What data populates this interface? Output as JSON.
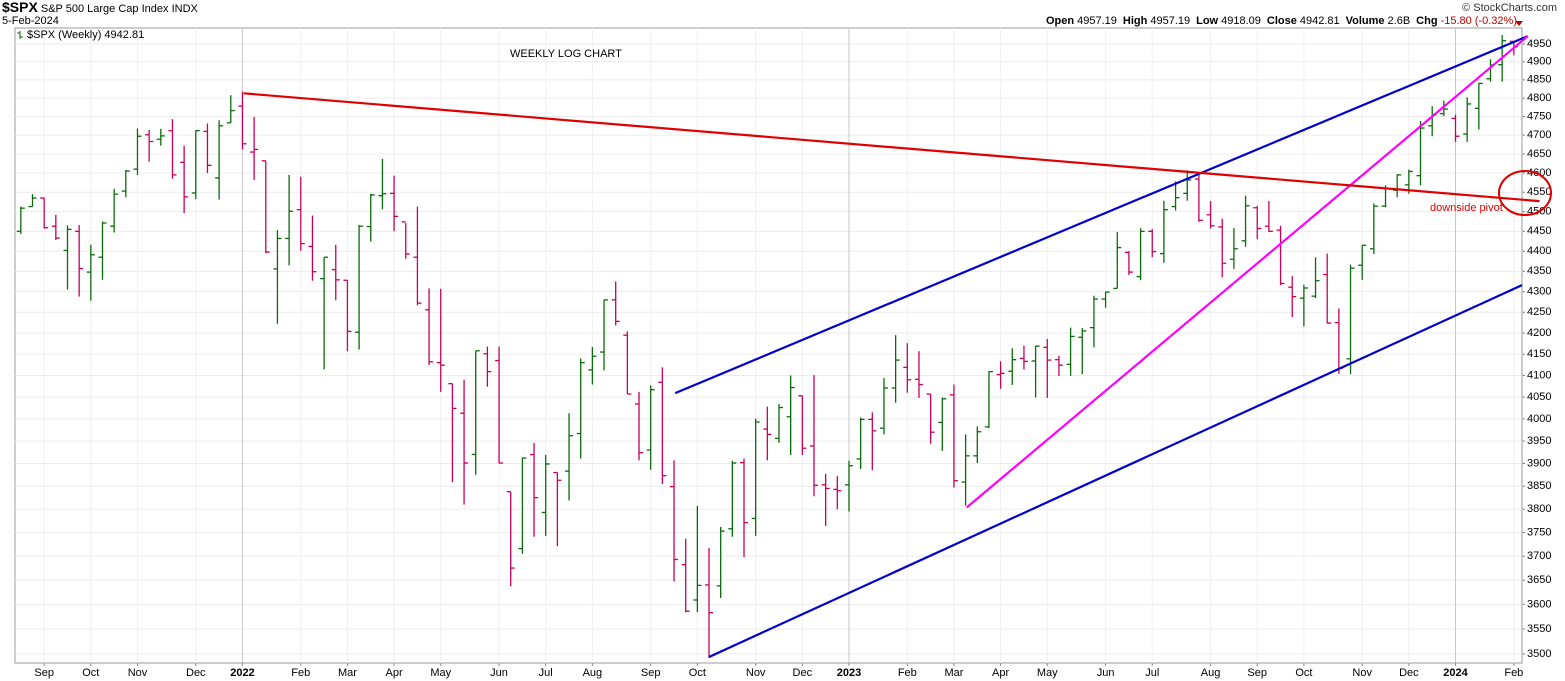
{
  "chart_data": {
    "type": "ohlc",
    "header": {
      "symbol": "$SPX",
      "name": "S&P 500 Large Cap Index",
      "exchange": "INDX",
      "date": "5-Feb-2024",
      "copyright": "© StockCharts.com",
      "quote": [
        {
          "label": "Open",
          "value": "4957.19"
        },
        {
          "label": "High",
          "value": "4957.19"
        },
        {
          "label": "Low",
          "value": "4918.09"
        },
        {
          "label": "Close",
          "value": "4942.81"
        },
        {
          "label": "Volume",
          "value": "2.6B"
        },
        {
          "label": "Chg",
          "value": "-15.80 (-0.32%)"
        }
      ]
    },
    "legend": "$SPX (Weekly) 4942.81",
    "annotations": [
      "WEEKLY LOG CHART",
      "downside pivot"
    ],
    "log_scale": true,
    "grid": true,
    "up_color": "#0a6b0a",
    "down_color": "#c8005a",
    "xlim": [
      -0.5,
      128.7
    ],
    "xticks": [
      {
        "value": 2,
        "label": "Sep"
      },
      {
        "value": 6,
        "label": "Oct"
      },
      {
        "value": 10,
        "label": "Nov"
      },
      {
        "value": 15,
        "label": "Dec"
      },
      {
        "value": 19,
        "label": "2022"
      },
      {
        "value": 24,
        "label": "Feb"
      },
      {
        "value": 28,
        "label": "Mar"
      },
      {
        "value": 32,
        "label": "Apr"
      },
      {
        "value": 36,
        "label": "May"
      },
      {
        "value": 41,
        "label": "Jun"
      },
      {
        "value": 45,
        "label": "Jul"
      },
      {
        "value": 49,
        "label": "Aug"
      },
      {
        "value": 54,
        "label": "Sep"
      },
      {
        "value": 58,
        "label": "Oct"
      },
      {
        "value": 63,
        "label": "Nov"
      },
      {
        "value": 67,
        "label": "Dec"
      },
      {
        "value": 71,
        "label": "2023"
      },
      {
        "value": 76,
        "label": "Feb"
      },
      {
        "value": 80,
        "label": "Mar"
      },
      {
        "value": 84,
        "label": "Apr"
      },
      {
        "value": 88,
        "label": "May"
      },
      {
        "value": 93,
        "label": "Jun"
      },
      {
        "value": 97,
        "label": "Jul"
      },
      {
        "value": 102,
        "label": "Aug"
      },
      {
        "value": 106,
        "label": "Sep"
      },
      {
        "value": 110,
        "label": "Oct"
      },
      {
        "value": 115,
        "label": "Nov"
      },
      {
        "value": 119,
        "label": "Dec"
      },
      {
        "value": 123,
        "label": "2024"
      },
      {
        "value": 128,
        "label": "Feb"
      }
    ],
    "ylim": [
      3482,
      4995
    ],
    "yticks": [
      3500,
      3550,
      3600,
      3650,
      3700,
      3750,
      3800,
      3850,
      3900,
      3950,
      4000,
      4050,
      4100,
      4150,
      4200,
      4250,
      4300,
      4350,
      4400,
      4450,
      4500,
      4550,
      4600,
      4650,
      4700,
      4750,
      4800,
      4850,
      4900,
      4950
    ],
    "open": [
      4450,
      4513,
      4535,
      4463,
      4402,
      4450,
      4348,
      4385,
      4463,
      4553,
      4610,
      4701,
      4689,
      4712,
      4628,
      4548,
      4710,
      4587,
      4733,
      4778,
      4655,
      4632,
      4356,
      4432,
      4505,
      4412,
      4332,
      4354,
      4328,
      4202,
      4462,
      4541,
      4547,
      4474,
      4385,
      4256,
      4130,
      4081,
      4013,
      3920,
      4151,
      4135,
      3838,
      3716,
      3920,
      3793,
      3880,
      3883,
      3967,
      4113,
      4155,
      4280,
      4195,
      4034,
      3930,
      4084,
      3849,
      3682,
      3609,
      3640,
      3638,
      3758,
      3902,
      3780,
      3977,
      3956,
      4005,
      4053,
      3939,
      3853,
      3843,
      3853,
      3910,
      3999,
      3979,
      4071,
      4119,
      4091,
      4057,
      3992,
      4055,
      3859,
      3917,
      3982,
      4102,
      4110,
      4140,
      4134,
      4166,
      4137,
      4126,
      4190,
      4213,
      4282,
      4308,
      4397,
      4337,
      4450,
      4394,
      4513,
      4547,
      4584,
      4492,
      4461,
      4380,
      4426,
      4510,
      4463,
      4453,
      4311,
      4284,
      4289,
      4342,
      4225,
      4139,
      4365,
      4406,
      4514,
      4555,
      4569,
      4593,
      4725,
      4758,
      4745,
      4703,
      4772,
      4853,
      4892,
      4957.19
    ],
    "high": [
      4513,
      4545,
      4536,
      4492,
      4465,
      4466,
      4416,
      4475,
      4559,
      4608,
      4718,
      4714,
      4717,
      4743,
      4672,
      4713,
      4731,
      4740,
      4808,
      4818,
      4749,
      4632,
      4453,
      4595,
      4590,
      4490,
      4385,
      4416,
      4328,
      4466,
      4546,
      4637,
      4593,
      4471,
      4513,
      4308,
      4307,
      4081,
      4090,
      4158,
      4168,
      4168,
      3838,
      3913,
      3946,
      3919,
      3880,
      4013,
      4140,
      4167,
      4280,
      4325,
      4204,
      4062,
      4077,
      4119,
      3907,
      3737,
      3807,
      3717,
      3762,
      3906,
      3911,
      4001,
      4028,
      4034,
      4100,
      4053,
      4101,
      3877,
      3872,
      3906,
      4003,
      4015,
      4094,
      4195,
      4176,
      4157,
      4057,
      4049,
      4079,
      3965,
      3983,
      4110,
      4133,
      4164,
      4170,
      4170,
      4186,
      4146,
      4213,
      4212,
      4290,
      4300,
      4448,
      4400,
      4458,
      4456,
      4528,
      4578,
      4607,
      4595,
      4527,
      4482,
      4458,
      4541,
      4515,
      4527,
      4464,
      4338,
      4317,
      4385,
      4394,
      4259,
      4366,
      4415,
      4521,
      4568,
      4597,
      4609,
      4738,
      4778,
      4793,
      4755,
      4802,
      4842,
      4907,
      4975,
      4957.19
    ],
    "low": [
      4443,
      4513,
      4457,
      4428,
      4305,
      4288,
      4278,
      4329,
      4447,
      4537,
      4595,
      4630,
      4672,
      4585,
      4496,
      4532,
      4600,
      4531,
      4733,
      4662,
      4582,
      4395,
      4222,
      4365,
      4401,
      4327,
      4114,
      4279,
      4157,
      4161,
      4424,
      4506,
      4450,
      4381,
      4267,
      4124,
      4062,
      3859,
      3810,
      3875,
      4074,
      3900,
      3637,
      3705,
      3741,
      3743,
      3721,
      3819,
      3911,
      4079,
      4112,
      4218,
      4057,
      3907,
      3886,
      3855,
      3647,
      3584,
      3584,
      3492,
      3613,
      3741,
      3698,
      3743,
      3907,
      3946,
      3919,
      3919,
      3828,
      3764,
      3800,
      3795,
      3888,
      3885,
      3965,
      4037,
      4060,
      4048,
      3944,
      3928,
      3847,
      3808,
      3901,
      3979,
      4069,
      4078,
      4114,
      4049,
      4048,
      4099,
      4099,
      4103,
      4166,
      4261,
      4308,
      4341,
      4328,
      4385,
      4371,
      4503,
      4528,
      4474,
      4457,
      4335,
      4356,
      4411,
      4430,
      4448,
      4316,
      4238,
      4216,
      4284,
      4223,
      4104,
      4103,
      4329,
      4393,
      4511,
      4537,
      4546,
      4568,
      4697,
      4751,
      4682,
      4682,
      4715,
      4845,
      4845,
      4918.09
    ],
    "close": [
      4509,
      4535,
      4459,
      4433,
      4455,
      4357,
      4391,
      4471,
      4545,
      4605,
      4697,
      4683,
      4698,
      4595,
      4538,
      4712,
      4620,
      4725,
      4766,
      4677,
      4662,
      4398,
      4432,
      4501,
      4419,
      4349,
      4385,
      4329,
      4204,
      4463,
      4543,
      4546,
      4488,
      4393,
      4272,
      4132,
      4124,
      4024,
      3901,
      4158,
      4109,
      3901,
      3675,
      3912,
      3825,
      3899,
      3863,
      3962,
      4130,
      4145,
      4280,
      4228,
      4057,
      3924,
      4067,
      3873,
      3693,
      3586,
      3639,
      3583,
      3753,
      3901,
      3771,
      3993,
      3965,
      4026,
      4072,
      3934,
      3852,
      3845,
      3840,
      3895,
      3999,
      3973,
      4071,
      4136,
      4090,
      4079,
      3970,
      4046,
      3862,
      3917,
      3971,
      4109,
      4105,
      4137,
      4133,
      4169,
      4136,
      4124,
      4192,
      4205,
      4282,
      4299,
      4409,
      4348,
      4450,
      4399,
      4505,
      4536,
      4582,
      4478,
      4464,
      4370,
      4406,
      4515,
      4457,
      4450,
      4320,
      4288,
      4309,
      4327,
      4224,
      4117,
      4358,
      4415,
      4514,
      4559,
      4595,
      4604,
      4719,
      4754,
      4770,
      4697,
      4784,
      4840,
      4891,
      4959,
      4942.81
    ],
    "trendlines": [
      {
        "color": "#0000cc",
        "x": [
          56.1,
          129.2
        ],
        "values": [
          4059,
          4972
        ]
      },
      {
        "color": "#0000cc",
        "x": [
          59.0,
          128.7
        ],
        "values": [
          3494,
          4316
        ]
      },
      {
        "color": "#ff00ff",
        "x": [
          81.1,
          129.2
        ],
        "values": [
          3804,
          4972
        ]
      },
      {
        "color": "#e00000",
        "x": [
          19.1,
          130.2
        ],
        "values": [
          4813,
          4527
        ]
      }
    ]
  }
}
